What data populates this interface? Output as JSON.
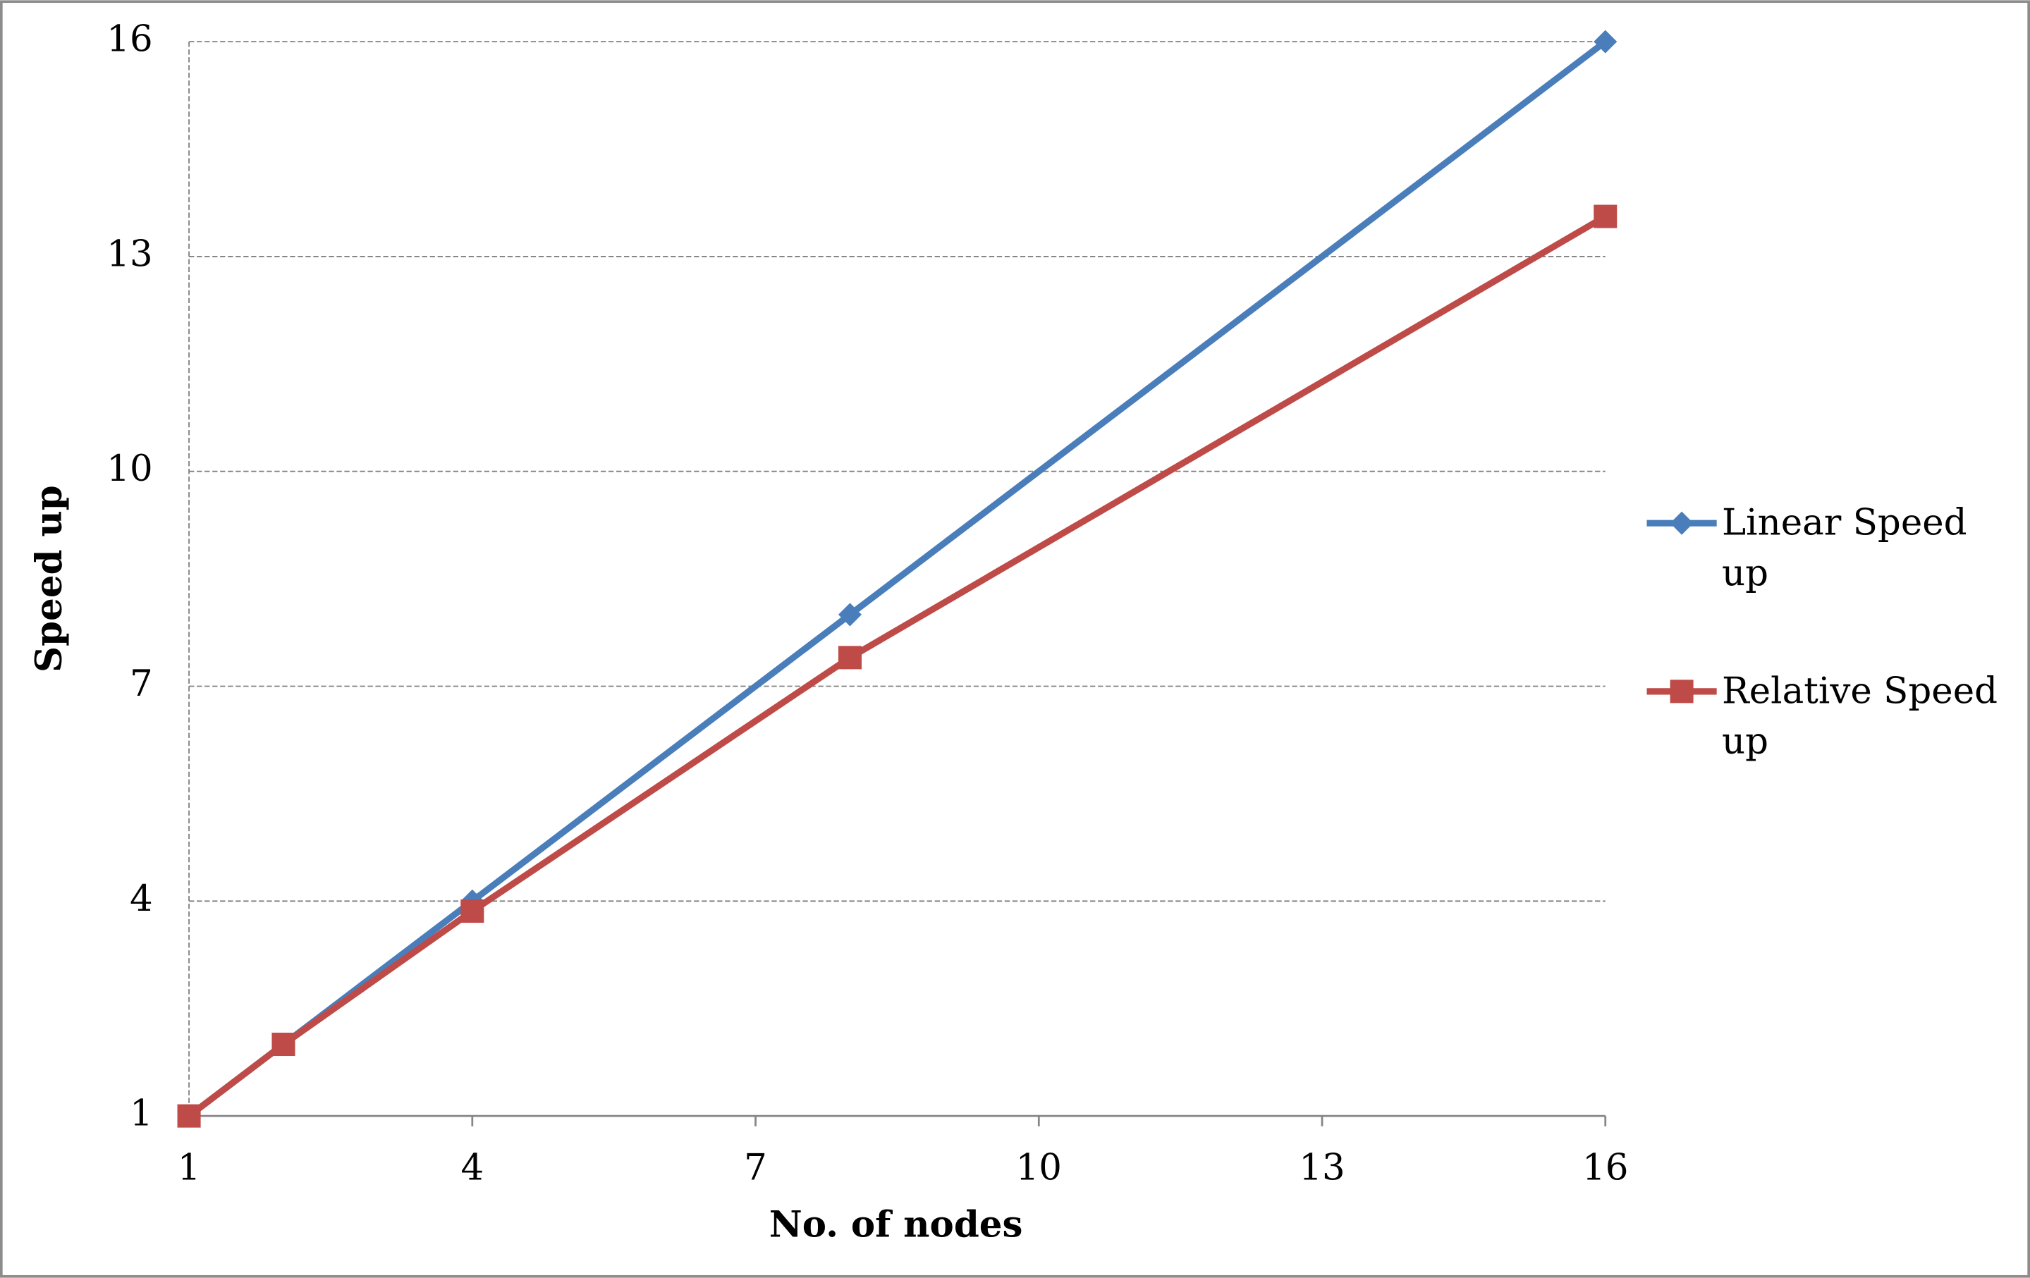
{
  "chart_data": {
    "type": "line",
    "x_label": "No. of nodes",
    "y_label": "Speed up",
    "x": [
      1,
      2,
      4,
      8,
      16
    ],
    "series": [
      {
        "name": "Linear Speed up",
        "color": "#4a7ebb",
        "marker": "diamond",
        "values": [
          1,
          2,
          4,
          8,
          16
        ]
      },
      {
        "name": "Relative Speed up",
        "color": "#be4b48",
        "marker": "square",
        "values": [
          1,
          2,
          3.86,
          7.4,
          13.56
        ]
      }
    ],
    "xlim": [
      1,
      16
    ],
    "xticks": [
      1,
      4,
      7,
      10,
      13,
      16
    ],
    "ylim": [
      1,
      16
    ],
    "yticks": [
      1,
      4,
      7,
      10,
      13,
      16
    ],
    "grid": true,
    "legend": "right"
  }
}
